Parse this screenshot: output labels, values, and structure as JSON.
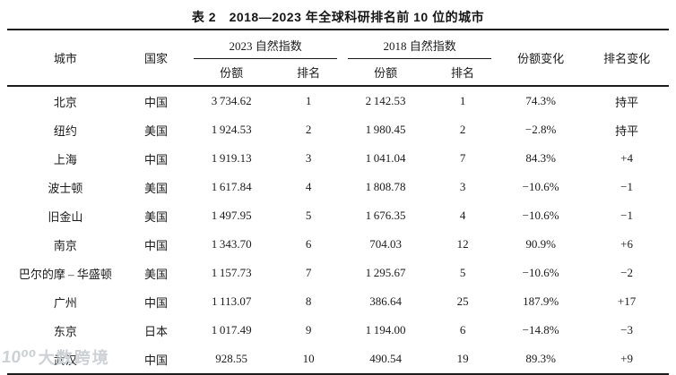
{
  "title": "表 2　2018—2023 年全球科研排名前 10 位的城市",
  "table": {
    "col_headers": {
      "city": "城市",
      "country": "国家",
      "group_2023": "2023 自然指数",
      "group_2018": "2018 自然指数",
      "share_2023": "份额",
      "rank_2023": "排名",
      "share_2018": "份额",
      "rank_2018": "排名",
      "share_change": "份额变化",
      "rank_change": "排名变化"
    },
    "rows": [
      {
        "city": "北京",
        "country": "中国",
        "share_2023": "3 734.62",
        "rank_2023": "1",
        "share_2018": "2 142.53",
        "rank_2018": "1",
        "share_change": "74.3%",
        "rank_change": "持平"
      },
      {
        "city": "纽约",
        "country": "美国",
        "share_2023": "1 924.53",
        "rank_2023": "2",
        "share_2018": "1 980.45",
        "rank_2018": "2",
        "share_change": "−2.8%",
        "rank_change": "持平"
      },
      {
        "city": "上海",
        "country": "中国",
        "share_2023": "1 919.13",
        "rank_2023": "3",
        "share_2018": "1 041.04",
        "rank_2018": "7",
        "share_change": "84.3%",
        "rank_change": "+4"
      },
      {
        "city": "波士顿",
        "country": "美国",
        "share_2023": "1 617.84",
        "rank_2023": "4",
        "share_2018": "1 808.78",
        "rank_2018": "3",
        "share_change": "−10.6%",
        "rank_change": "−1"
      },
      {
        "city": "旧金山",
        "country": "美国",
        "share_2023": "1 497.95",
        "rank_2023": "5",
        "share_2018": "1 676.35",
        "rank_2018": "4",
        "share_change": "−10.6%",
        "rank_change": "−1"
      },
      {
        "city": "南京",
        "country": "中国",
        "share_2023": "1 343.70",
        "rank_2023": "6",
        "share_2018": "704.03",
        "rank_2018": "12",
        "share_change": "90.9%",
        "rank_change": "+6"
      },
      {
        "city": "巴尔的摩 – 华盛顿",
        "country": "美国",
        "share_2023": "1 157.73",
        "rank_2023": "7",
        "share_2018": "1 295.67",
        "rank_2018": "5",
        "share_change": "−10.6%",
        "rank_change": "−2"
      },
      {
        "city": "广州",
        "country": "中国",
        "share_2023": "1 113.07",
        "rank_2023": "8",
        "share_2018": "386.64",
        "rank_2018": "25",
        "share_change": "187.9%",
        "rank_change": "+17"
      },
      {
        "city": "东京",
        "country": "日本",
        "share_2023": "1 017.49",
        "rank_2023": "9",
        "share_2018": "1 194.00",
        "rank_2018": "6",
        "share_change": "−14.8%",
        "rank_change": "−3"
      },
      {
        "city": "武汉",
        "country": "中国",
        "share_2023": "928.55",
        "rank_2023": "10",
        "share_2018": "490.54",
        "rank_2018": "19",
        "share_change": "89.3%",
        "rank_change": "+9"
      }
    ]
  },
  "watermark": {
    "logo": "10⁰⁰",
    "text": "大数跨境"
  },
  "colors": {
    "rule": "#1b1b1b",
    "text": "#1b1b1b",
    "watermark": "#ccd1d5"
  }
}
